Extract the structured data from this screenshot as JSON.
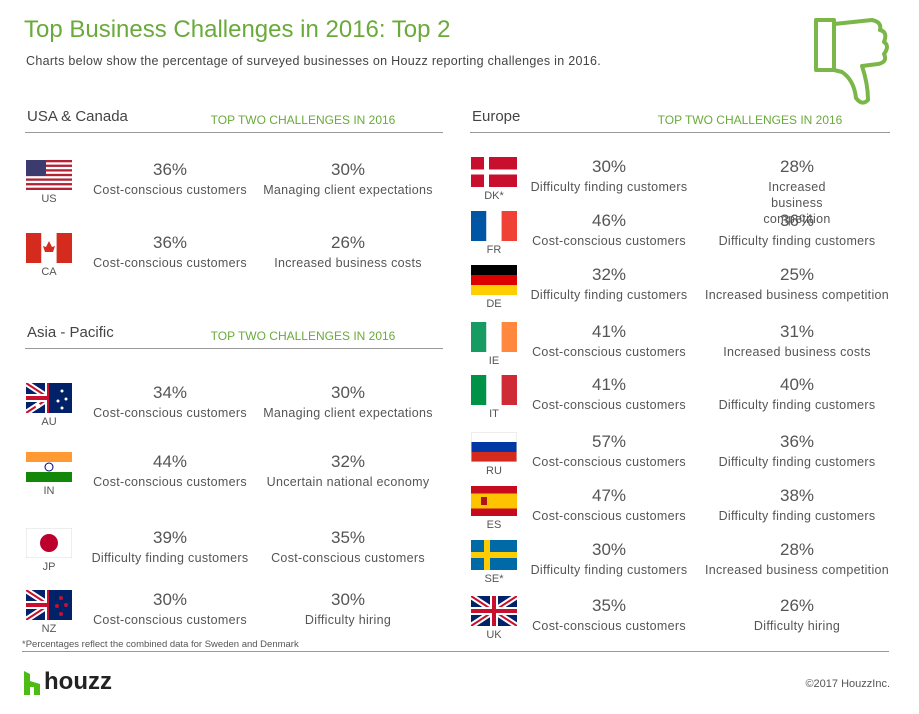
{
  "header": {
    "title": "Top Business Challenges in 2016: Top 2",
    "subtitle": "Charts below show the percentage of surveyed businesses on Houzz reporting challenges in 2016."
  },
  "sections": [
    {
      "name": "USA & Canada",
      "tag": "TOP TWO CHALLENGES IN 2016",
      "rows": [
        {
          "code": "US",
          "c1": {
            "pct": "36%",
            "label": "Cost-conscious customers"
          },
          "c2": {
            "pct": "30%",
            "label": "Managing client expectations"
          }
        },
        {
          "code": "CA",
          "c1": {
            "pct": "36%",
            "label": "Cost-conscious customers"
          },
          "c2": {
            "pct": "26%",
            "label": "Increased business costs"
          }
        }
      ]
    },
    {
      "name": "Asia - Pacific",
      "tag": "TOP TWO CHALLENGES IN 2016",
      "rows": [
        {
          "code": "AU",
          "c1": {
            "pct": "34%",
            "label": "Cost-conscious customers"
          },
          "c2": {
            "pct": "30%",
            "label": "Managing client expectations"
          }
        },
        {
          "code": "IN",
          "c1": {
            "pct": "44%",
            "label": "Cost-conscious customers"
          },
          "c2": {
            "pct": "32%",
            "label": "Uncertain national economy"
          }
        },
        {
          "code": "JP",
          "c1": {
            "pct": "39%",
            "label": "Difficulty finding customers"
          },
          "c2": {
            "pct": "35%",
            "label": "Cost-conscious customers"
          }
        },
        {
          "code": "NZ",
          "c1": {
            "pct": "30%",
            "label": "Cost-conscious customers"
          },
          "c2": {
            "pct": "30%",
            "label": "Difficulty hiring"
          }
        }
      ]
    },
    {
      "name": "Europe",
      "tag": "TOP TWO CHALLENGES IN 2016",
      "rows": [
        {
          "code": "DK*",
          "c1": {
            "pct": "30%",
            "label": "Difficulty finding customers"
          },
          "c2": {
            "pct": "28%",
            "label": "Increased business competition"
          }
        },
        {
          "code": "FR",
          "c1": {
            "pct": "46%",
            "label": "Cost-conscious customers"
          },
          "c2": {
            "pct": "36%",
            "label": "Difficulty finding customers"
          }
        },
        {
          "code": "DE",
          "c1": {
            "pct": "32%",
            "label": "Difficulty finding customers"
          },
          "c2": {
            "pct": "25%",
            "label": "Increased business competition"
          }
        },
        {
          "code": "IE",
          "c1": {
            "pct": "41%",
            "label": "Cost-conscious customers"
          },
          "c2": {
            "pct": "31%",
            "label": "Increased business costs"
          }
        },
        {
          "code": "IT",
          "c1": {
            "pct": "41%",
            "label": "Cost-conscious customers"
          },
          "c2": {
            "pct": "40%",
            "label": "Difficulty finding customers"
          }
        },
        {
          "code": "RU",
          "c1": {
            "pct": "57%",
            "label": "Cost-conscious customers"
          },
          "c2": {
            "pct": "36%",
            "label": "Difficulty finding customers"
          }
        },
        {
          "code": "ES",
          "c1": {
            "pct": "47%",
            "label": "Cost-conscious customers"
          },
          "c2": {
            "pct": "38%",
            "label": "Difficulty finding customers"
          }
        },
        {
          "code": "SE*",
          "c1": {
            "pct": "30%",
            "label": "Difficulty finding customers"
          },
          "c2": {
            "pct": "28%",
            "label": "Increased business competition"
          }
        },
        {
          "code": "UK",
          "c1": {
            "pct": "35%",
            "label": "Cost-conscious customers"
          },
          "c2": {
            "pct": "26%",
            "label": "Difficulty hiring"
          }
        }
      ]
    }
  ],
  "footnote": "*Percentages reflect the combined data for Sweden and Denmark",
  "logo": "houzz",
  "copyright": "©2017 HouzzInc."
}
